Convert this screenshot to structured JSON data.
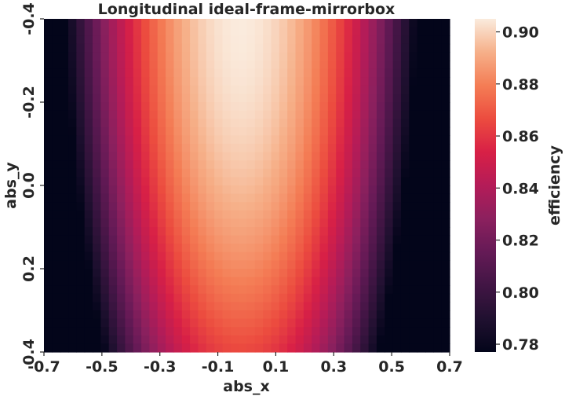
{
  "chart_data": {
    "type": "heatmap",
    "title": "Longitudinal ideal-frame-mirrorbox",
    "xlabel": "abs_x",
    "ylabel": "abs_y",
    "x_range": [
      -0.7,
      0.7
    ],
    "y_range": [
      -0.4,
      0.4
    ],
    "x_ticks": [
      "-0.7",
      "-0.5",
      "-0.3",
      "-0.1",
      "0.1",
      "0.3",
      "0.5",
      "0.7"
    ],
    "y_ticks": [
      "-0.4",
      "-0.2",
      "0.0",
      "0.2",
      "0.4"
    ],
    "grid_cols": 50,
    "grid_rows": 40,
    "colorbar": {
      "label": "efficiency",
      "vmin": 0.777,
      "vmax": 0.905,
      "ticks": [
        "0.78",
        "0.80",
        "0.82",
        "0.84",
        "0.86",
        "0.88",
        "0.90"
      ],
      "colormap": "rocket"
    },
    "model": {
      "peak": 0.905,
      "peak_x": -0.02,
      "peak_y": -0.4,
      "min": 0.777,
      "center_x_curvature": 0.35,
      "y_falloff": 0.04
    }
  }
}
